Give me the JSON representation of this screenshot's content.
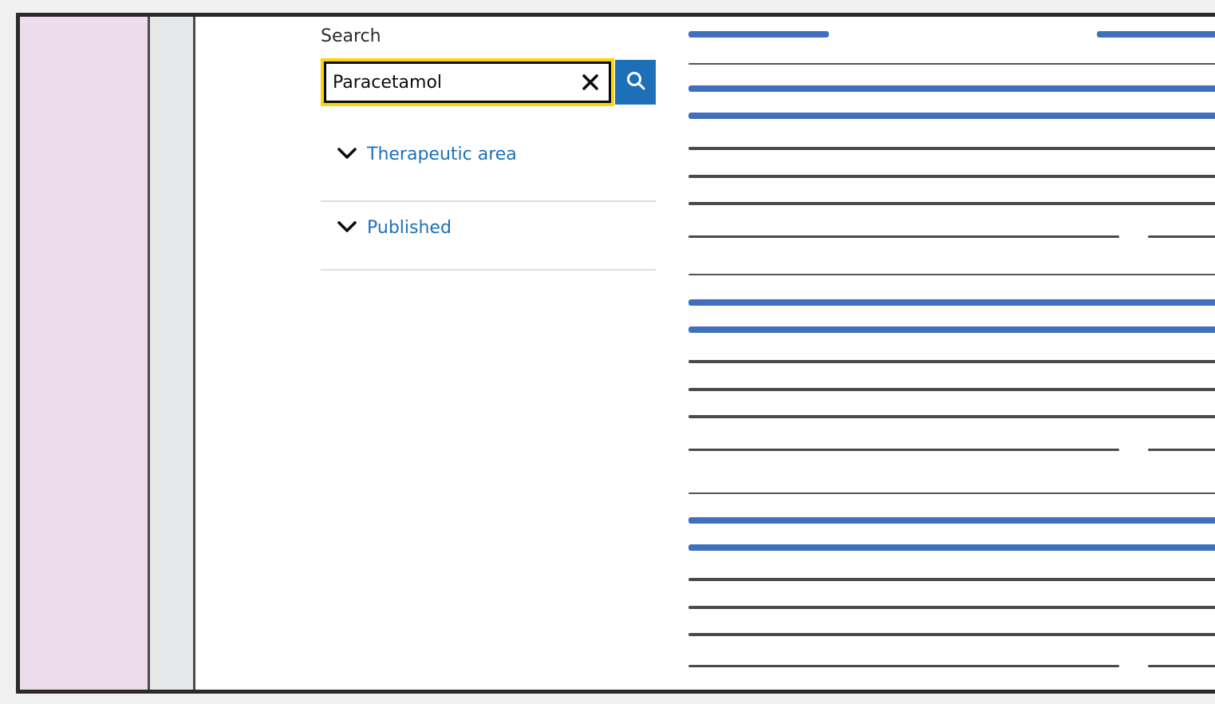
{
  "search": {
    "label": "Search",
    "value": "Paracetamol",
    "clear_icon": "close-icon",
    "submit_icon": "search-icon"
  },
  "filters": [
    {
      "label": "Therapeutic area",
      "icon": "chevron-down-icon"
    },
    {
      "label": "Published",
      "icon": "chevron-down-icon"
    }
  ],
  "colors": {
    "focus": "#ffd400",
    "link": "#1d70b8",
    "sidebar": "#ecdcec",
    "placeholder_link": "#3f6fbe",
    "placeholder_text": "#4a4a4a"
  }
}
